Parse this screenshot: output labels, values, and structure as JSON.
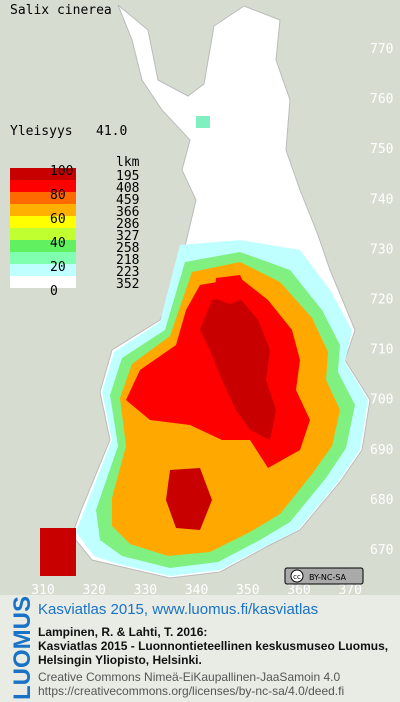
{
  "header": {
    "title": "Salix cinerea",
    "index_label": "Yleisyys",
    "index_value": "41.0"
  },
  "legend": {
    "class_labels": [
      100,
      80,
      60,
      40,
      20,
      0
    ],
    "colors": [
      "#c80000",
      "#ff0000",
      "#ff6a00",
      "#ffb000",
      "#ffff00",
      "#c0ff30",
      "#60f060",
      "#80ffb0",
      "#c0ffff",
      "#ffffff"
    ],
    "count_header": "lkm",
    "counts": [
      195,
      408,
      459,
      366,
      286,
      327,
      258,
      218,
      223,
      352
    ]
  },
  "grid": {
    "northing": [
      770,
      760,
      750,
      740,
      730,
      720,
      710,
      700,
      690,
      680,
      670
    ],
    "easting": [
      310,
      320,
      330,
      340,
      350,
      360,
      370
    ]
  },
  "badge": "BY-NC-SA",
  "footer": {
    "logo": "LUOMUS",
    "link": "Kasviatlas 2015, www.luomus.fi/kasviatlas",
    "citation": [
      "Lampinen, R. & Lahti, T. 2016:",
      "Kasviatlas 2015 - Luonnontieteellinen keskusmuseo Luomus,",
      "Helsingin Yliopisto, Helsinki."
    ],
    "license": [
      "Creative Commons Nimeä-EiKaupallinen-JaaSamoin 4.0",
      "https://creativecommons.org/licenses/by-nc-sa/4.0/deed.fi"
    ]
  }
}
